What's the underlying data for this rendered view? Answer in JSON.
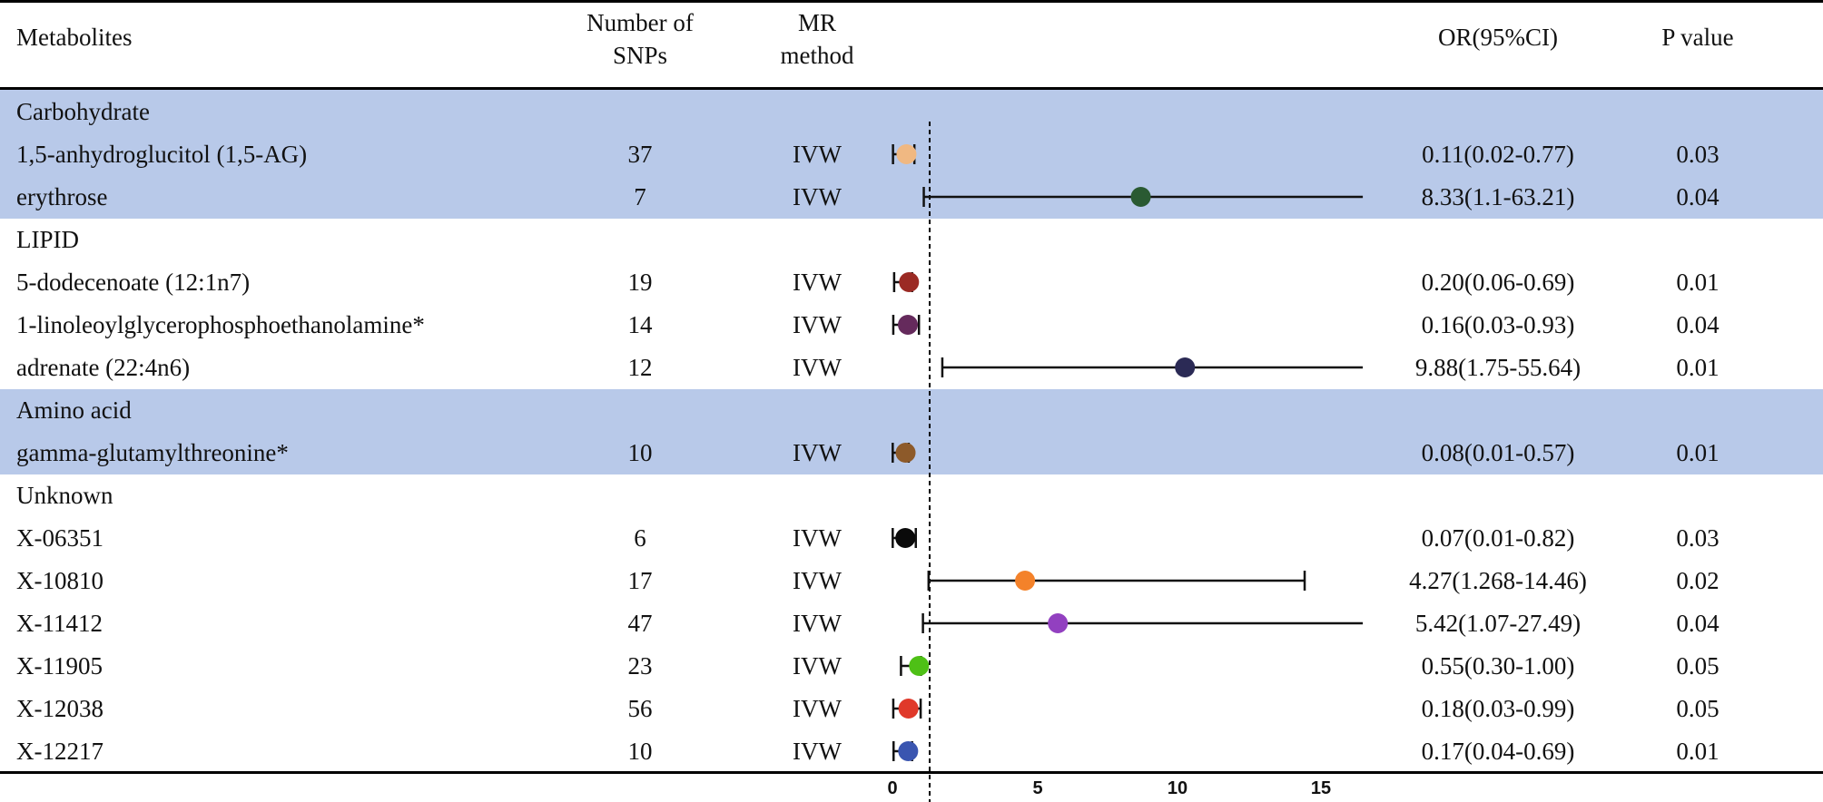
{
  "header": {
    "metabolites": "Metabolites",
    "snps_line1": "Number of",
    "snps_line2": "SNPs",
    "method_line1": "MR",
    "method_line2": "method",
    "or": "OR(95%CI)",
    "p": "P value"
  },
  "groups": [
    {
      "label": "Carbohydrate",
      "shaded": true
    },
    {
      "label": "LIPID",
      "shaded": false
    },
    {
      "label": "Amino acid",
      "shaded": true
    },
    {
      "label": "Unknown",
      "shaded": false
    }
  ],
  "rows": [
    {
      "type": "group",
      "label": "Carbohydrate"
    },
    {
      "type": "data",
      "name": "1,5-anhydroglucitol (1,5-AG)",
      "snps": "37",
      "method": "IVW",
      "or_text": "0.11(0.02-0.77)",
      "p": "0.03"
    },
    {
      "type": "data",
      "name": "erythrose",
      "snps": "7",
      "method": "IVW",
      "or_text": "8.33(1.1-63.21)",
      "p": "0.04"
    },
    {
      "type": "group",
      "label": "LIPID"
    },
    {
      "type": "data",
      "name": "5-dodecenoate (12:1n7)",
      "snps": "19",
      "method": "IVW",
      "or_text": "0.20(0.06-0.69)",
      "p": "0.01"
    },
    {
      "type": "data",
      "name": "1-linoleoylglycerophosphoethanolamine*",
      "snps": "14",
      "method": "IVW",
      "or_text": "0.16(0.03-0.93)",
      "p": "0.04"
    },
    {
      "type": "data",
      "name": "adrenate (22:4n6)",
      "snps": "12",
      "method": "IVW",
      "or_text": "9.88(1.75-55.64)",
      "p": "0.01"
    },
    {
      "type": "group",
      "label": "Amino acid"
    },
    {
      "type": "data",
      "name": "gamma-glutamylthreonine*",
      "snps": "10",
      "method": "IVW",
      "or_text": "0.08(0.01-0.57)",
      "p": "0.01"
    },
    {
      "type": "group",
      "label": "Unknown"
    },
    {
      "type": "data",
      "name": "X-06351",
      "snps": "6",
      "method": "IVW",
      "or_text": "0.07(0.01-0.82)",
      "p": "0.03"
    },
    {
      "type": "data",
      "name": "X-10810",
      "snps": "17",
      "method": "IVW",
      "or_text": "4.27(1.268-14.46)",
      "p": "0.02"
    },
    {
      "type": "data",
      "name": "X-11412",
      "snps": "47",
      "method": "IVW",
      "or_text": "5.42(1.07-27.49)",
      "p": "0.04"
    },
    {
      "type": "data",
      "name": "X-11905",
      "snps": "23",
      "method": "IVW",
      "or_text": "0.55(0.30-1.00)",
      "p": "0.05"
    },
    {
      "type": "data",
      "name": "X-12038",
      "snps": "56",
      "method": "IVW",
      "or_text": "0.18(0.03-0.99)",
      "p": "0.05"
    },
    {
      "type": "data",
      "name": "X-12217",
      "snps": "10",
      "method": "IVW",
      "or_text": "0.17(0.04-0.69)",
      "p": "0.01"
    }
  ],
  "axis": {
    "ticks": [
      "0",
      "5",
      "10",
      "15"
    ]
  },
  "chart_data": {
    "type": "scatter",
    "subtype": "forest_plot",
    "title": "",
    "xlabel": "",
    "ylabel": "",
    "x_ticks": [
      0,
      5,
      10,
      15
    ],
    "xlim": [
      0,
      16.5
    ],
    "reference_line": 1,
    "reference_line_style": "dashed",
    "ci_clipped_at": 16.5,
    "categories": [
      "1,5-anhydroglucitol (1,5-AG)",
      "erythrose",
      "5-dodecenoate (12:1n7)",
      "1-linoleoylglycerophosphoethanolamine*",
      "adrenate (22:4n6)",
      "gamma-glutamylthreonine*",
      "X-06351",
      "X-10810",
      "X-11412",
      "X-11905",
      "X-12038",
      "X-12217"
    ],
    "groups": [
      "Carbohydrate",
      "Carbohydrate",
      "LIPID",
      "LIPID",
      "LIPID",
      "Amino acid",
      "Unknown",
      "Unknown",
      "Unknown",
      "Unknown",
      "Unknown",
      "Unknown"
    ],
    "or": [
      0.11,
      8.33,
      0.2,
      0.16,
      9.88,
      0.08,
      0.07,
      4.27,
      5.42,
      0.55,
      0.18,
      0.17
    ],
    "ci_low": [
      0.02,
      1.1,
      0.06,
      0.03,
      1.75,
      0.01,
      0.01,
      1.268,
      1.07,
      0.3,
      0.03,
      0.04
    ],
    "ci_high": [
      0.77,
      63.21,
      0.69,
      0.93,
      55.64,
      0.57,
      0.82,
      14.46,
      27.49,
      1.0,
      0.99,
      0.69
    ],
    "p_values": [
      0.03,
      0.04,
      0.01,
      0.04,
      0.01,
      0.01,
      0.03,
      0.02,
      0.04,
      0.05,
      0.05,
      0.01
    ],
    "snps": [
      37,
      7,
      19,
      14,
      12,
      10,
      6,
      17,
      47,
      23,
      56,
      10
    ],
    "method": "IVW",
    "colors": [
      "#f0b882",
      "#2a5a32",
      "#9b2a24",
      "#652a5c",
      "#2b2a55",
      "#8d5a2a",
      "#0a0a0a",
      "#f4822a",
      "#9240c0",
      "#4ec016",
      "#e0392a",
      "#3a55b0"
    ]
  }
}
